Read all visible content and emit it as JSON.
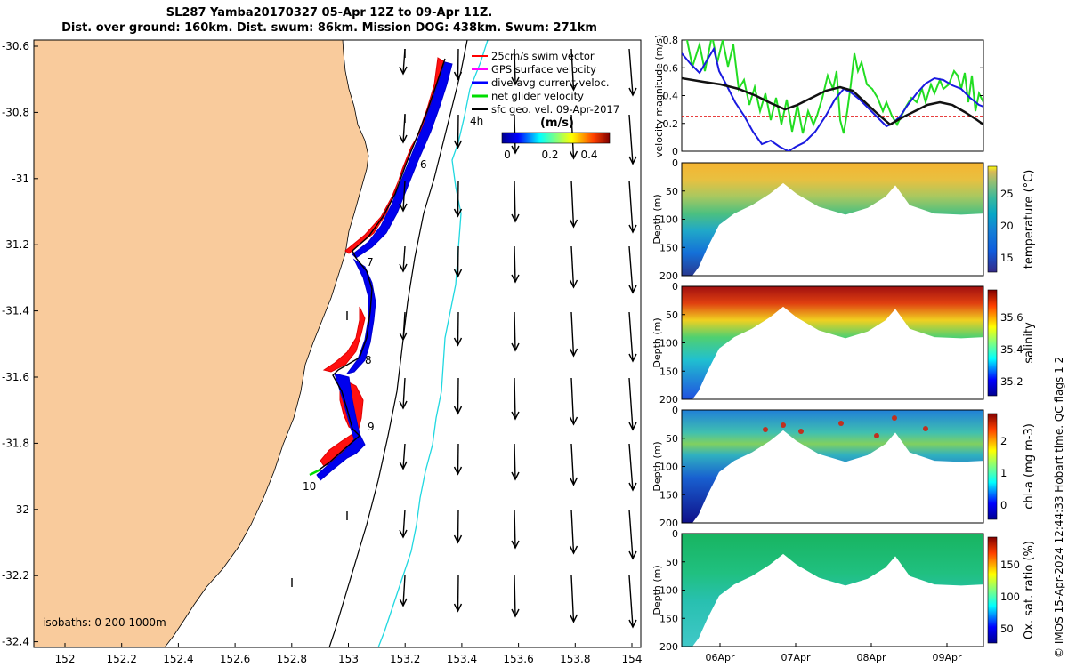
{
  "title_line1": "SL287 Yamba20170327 05-Apr 12Z to 09-Apr 11Z.",
  "title_line2": "Dist. over ground: 160km. Dist. swum: 86km. Mission DOG: 438km. Swum: 271km",
  "credit": "© IMOS 15-Apr-2024 12:44:33 Hobart time. QC flags 1  2",
  "map": {
    "lon_ticks": [
      "152",
      "152.2",
      "152.4",
      "152.6",
      "152.8",
      "153",
      "153.2",
      "153.4",
      "153.6",
      "153.8",
      "154"
    ],
    "lat_ticks": [
      "-30.6",
      "-30.8",
      "-31",
      "-31.2",
      "-31.4",
      "-31.6",
      "-31.8",
      "-32",
      "-32.2",
      "-32.4"
    ],
    "isobaths_label": "isobaths: 0   200  1000m",
    "land_color": "#f9cb9c",
    "day_labels": [
      "4h",
      "6",
      "7",
      "8",
      "9",
      "10"
    ],
    "legend": [
      {
        "label": "25cm/s swim vector",
        "color": "#ff0000"
      },
      {
        "label": "GPS surface velocity",
        "color": "#ff00ff"
      },
      {
        "label": "dive-avg current veloc.",
        "color": "#0000ff"
      },
      {
        "label": "net glider velocity",
        "color": "#00dd00"
      },
      {
        "label": "sfc geo. vel. 09-Apr-2017",
        "color": "#000000"
      }
    ],
    "colorbar_title": "(m/s)",
    "colorbar_ticks": [
      "0",
      "0.2",
      "0.4"
    ]
  },
  "velocity_panel": {
    "ylabel": "velocity magnitude (m/s)",
    "y_ticks": [
      "0",
      "0.2",
      "0.4",
      "0.6",
      "0.8"
    ],
    "ylim": [
      0,
      0.8
    ]
  },
  "sections": [
    {
      "id": "temperature",
      "cbar_label": "temperature (°C)",
      "cbar_ticks": [
        "15",
        "20",
        "25"
      ]
    },
    {
      "id": "salinity",
      "cbar_label": "salinity",
      "cbar_ticks": [
        "35.2",
        "35.4",
        "35.6"
      ]
    },
    {
      "id": "chla",
      "cbar_label": "chl-a (mg m-3)",
      "cbar_ticks": [
        "0",
        "1",
        "2"
      ]
    },
    {
      "id": "oxygen",
      "cbar_label": "Ox. sat. ratio (%)",
      "cbar_ticks": [
        "50",
        "100",
        "150"
      ]
    }
  ],
  "depth_label": "Depth (m)",
  "depth_ticks": [
    "0",
    "50",
    "100",
    "150",
    "200"
  ],
  "time_ticks": [
    "06Apr",
    "07Apr",
    "08Apr",
    "09Apr"
  ]
}
